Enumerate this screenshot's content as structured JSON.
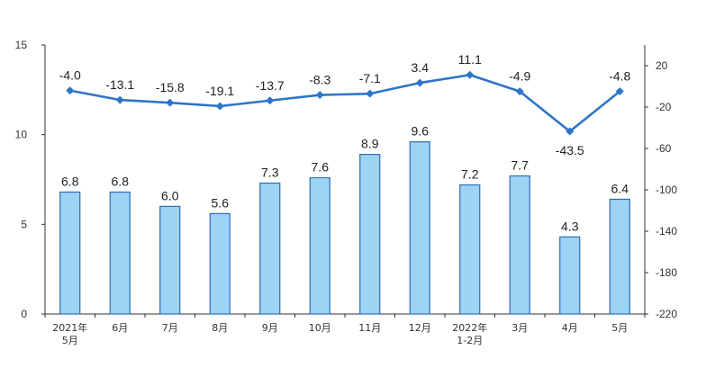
{
  "chart_data": {
    "type": "bar+line",
    "categories": [
      [
        "2021年",
        "5月"
      ],
      [
        "6月"
      ],
      [
        "7月"
      ],
      [
        "8月"
      ],
      [
        "9月"
      ],
      [
        "10月"
      ],
      [
        "11月"
      ],
      [
        "12月"
      ],
      [
        "2022年",
        "1-2月"
      ],
      [
        "3月"
      ],
      [
        "4月"
      ],
      [
        "5月"
      ]
    ],
    "bars": {
      "values": [
        6.8,
        6.8,
        6.0,
        5.6,
        7.3,
        7.6,
        8.9,
        9.6,
        7.2,
        7.7,
        4.3,
        6.4
      ],
      "labels": [
        "6.8",
        "6.8",
        "6.0",
        "5.6",
        "7.3",
        "7.6",
        "8.9",
        "9.6",
        "7.2",
        "7.7",
        "4.3",
        "6.4"
      ],
      "color": "#9DD3F5",
      "border": "#2E6DB4"
    },
    "line": {
      "values": [
        -4.0,
        -13.1,
        -15.8,
        -19.1,
        -13.7,
        -8.3,
        -7.1,
        3.4,
        11.1,
        -4.9,
        -43.5,
        -4.8
      ],
      "labels": [
        "-4.0",
        "-13.1",
        "-15.8",
        "-19.1",
        "-13.7",
        "-8.3",
        "-7.1",
        "3.4",
        "11.1",
        "-4.9",
        "-43.5",
        "-4.8"
      ],
      "color": "#2E75C8"
    },
    "y_left": {
      "ticks": [
        "0",
        "5",
        "10",
        "15"
      ],
      "ylim": [
        0,
        15
      ]
    },
    "y_right": {
      "ticks": [
        "20",
        "-20",
        "-60",
        "-100",
        "-140",
        "-180",
        "-220"
      ],
      "ylim": [
        -220,
        40
      ]
    },
    "grid": false
  }
}
